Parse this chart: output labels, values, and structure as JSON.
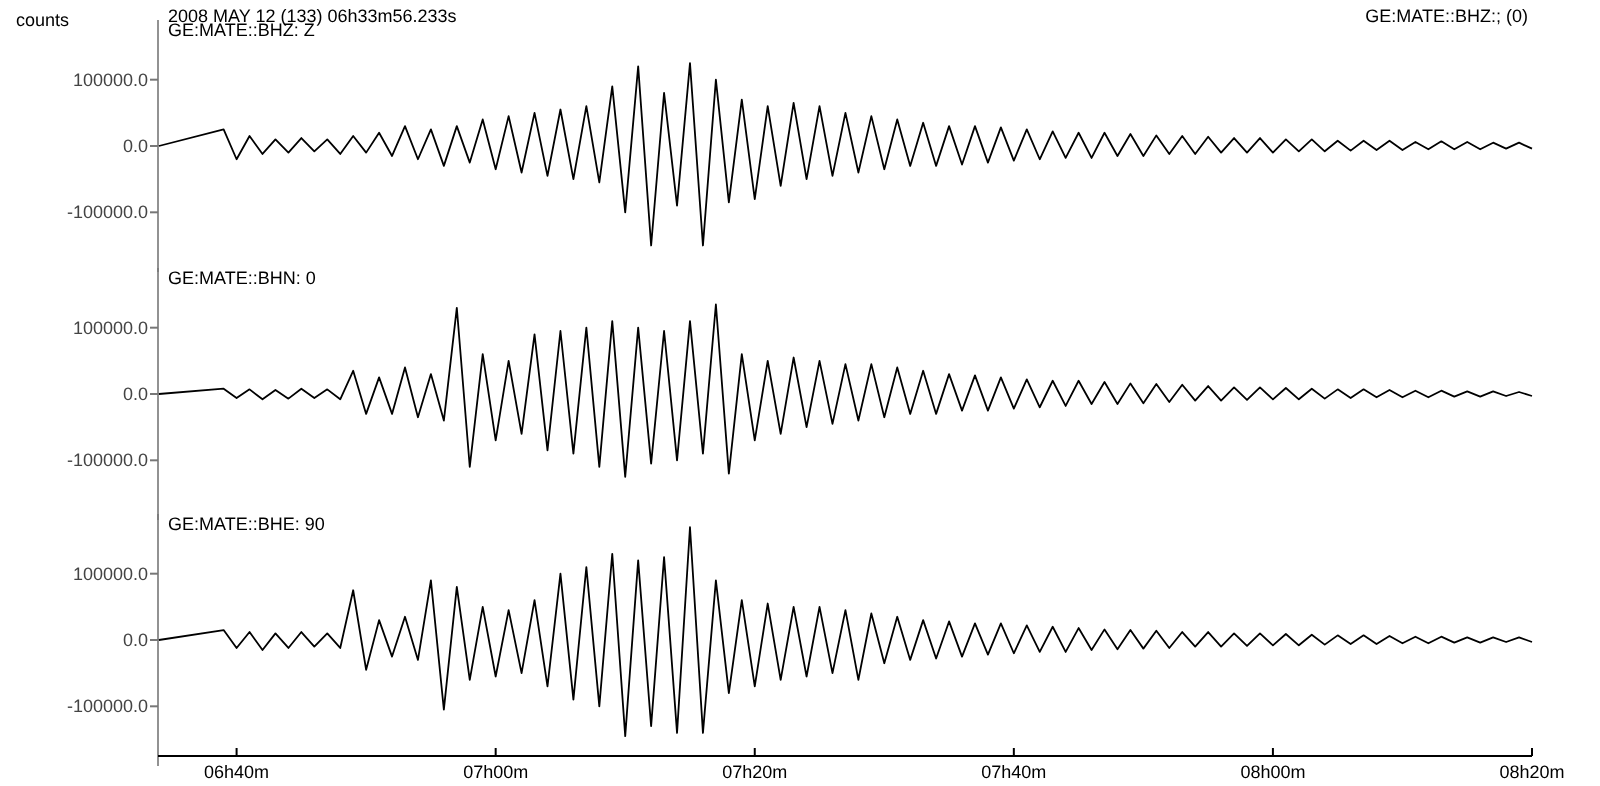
{
  "chart_data": [
    {
      "type": "line",
      "title": "GE:MATE::BHZ: Z",
      "ylabel": "counts",
      "annotations": [
        "2008 MAY 12 (133)  06h33m56.233s",
        "GE:MATE::BHZ:; (0)"
      ],
      "tick_labels": "y",
      "x": [
        "2008-05-12T06:34",
        "2008-05-12T06:39",
        "2008-05-12T06:40",
        "2008-05-12T06:41",
        "2008-05-12T06:42",
        "2008-05-12T06:43",
        "2008-05-12T06:44",
        "2008-05-12T06:45",
        "2008-05-12T06:46",
        "2008-05-12T06:47",
        "2008-05-12T06:48",
        "2008-05-12T06:49",
        "2008-05-12T06:50",
        "2008-05-12T06:51",
        "2008-05-12T06:52",
        "2008-05-12T06:53",
        "2008-05-12T06:54",
        "2008-05-12T06:55",
        "2008-05-12T06:56",
        "2008-05-12T06:57",
        "2008-05-12T06:58",
        "2008-05-12T06:59",
        "2008-05-12T07:00",
        "2008-05-12T07:01",
        "2008-05-12T07:02",
        "2008-05-12T07:03",
        "2008-05-12T07:04",
        "2008-05-12T07:05",
        "2008-05-12T07:06",
        "2008-05-12T07:07",
        "2008-05-12T07:08",
        "2008-05-12T07:09",
        "2008-05-12T07:10",
        "2008-05-12T07:11",
        "2008-05-12T07:12",
        "2008-05-12T07:13",
        "2008-05-12T07:14",
        "2008-05-12T07:15",
        "2008-05-12T07:16",
        "2008-05-12T07:17",
        "2008-05-12T07:18",
        "2008-05-12T07:19",
        "2008-05-12T07:20",
        "2008-05-12T07:21",
        "2008-05-12T07:22",
        "2008-05-12T07:23",
        "2008-05-12T07:24",
        "2008-05-12T07:25",
        "2008-05-12T07:26",
        "2008-05-12T07:27",
        "2008-05-12T07:28",
        "2008-05-12T07:29",
        "2008-05-12T07:30",
        "2008-05-12T07:31",
        "2008-05-12T07:32",
        "2008-05-12T07:33",
        "2008-05-12T07:34",
        "2008-05-12T07:35",
        "2008-05-12T07:36",
        "2008-05-12T07:37",
        "2008-05-12T07:38",
        "2008-05-12T07:39",
        "2008-05-12T07:40",
        "2008-05-12T07:41",
        "2008-05-12T07:42",
        "2008-05-12T07:43",
        "2008-05-12T07:44",
        "2008-05-12T07:45",
        "2008-05-12T07:46",
        "2008-05-12T07:47",
        "2008-05-12T07:48",
        "2008-05-12T07:49",
        "2008-05-12T07:50",
        "2008-05-12T07:51",
        "2008-05-12T07:52",
        "2008-05-12T07:53",
        "2008-05-12T07:54",
        "2008-05-12T07:55",
        "2008-05-12T07:56",
        "2008-05-12T07:57",
        "2008-05-12T07:58",
        "2008-05-12T07:59",
        "2008-05-12T08:00",
        "2008-05-12T08:01",
        "2008-05-12T08:02",
        "2008-05-12T08:03",
        "2008-05-12T08:04",
        "2008-05-12T08:05",
        "2008-05-12T08:06",
        "2008-05-12T08:07",
        "2008-05-12T08:08",
        "2008-05-12T08:09",
        "2008-05-12T08:10",
        "2008-05-12T08:11",
        "2008-05-12T08:12",
        "2008-05-12T08:13",
        "2008-05-12T08:14",
        "2008-05-12T08:15",
        "2008-05-12T08:16",
        "2008-05-12T08:17",
        "2008-05-12T08:18",
        "2008-05-12T08:19",
        "2008-05-12T08:20"
      ],
      "series": [
        {
          "color": "#000000",
          "values": [
            0,
            25000,
            -20000,
            15000,
            -12000,
            10000,
            -10000,
            12000,
            -8000,
            10000,
            -12000,
            15000,
            -10000,
            20000,
            -15000,
            30000,
            -20000,
            25000,
            -30000,
            30000,
            -25000,
            40000,
            -35000,
            45000,
            -40000,
            50000,
            -45000,
            55000,
            -50000,
            60000,
            -55000,
            90000,
            -100000,
            120000,
            -150000,
            80000,
            -90000,
            125000,
            -150000,
            100000,
            -85000,
            70000,
            -80000,
            60000,
            -60000,
            65000,
            -50000,
            60000,
            -45000,
            50000,
            -40000,
            45000,
            -35000,
            40000,
            -30000,
            35000,
            -30000,
            30000,
            -28000,
            30000,
            -25000,
            28000,
            -22000,
            25000,
            -20000,
            22000,
            -18000,
            20000,
            -18000,
            20000,
            -15000,
            18000,
            -15000,
            16000,
            -12000,
            15000,
            -12000,
            14000,
            -10000,
            12000,
            -10000,
            12000,
            -10000,
            10000,
            -8000,
            10000,
            -8000,
            8000,
            -7000,
            8000,
            -6000,
            8000,
            -6000,
            6000,
            -5000,
            7000,
            -5000,
            6000,
            -5000,
            5000,
            -4000,
            5000,
            -4000
          ]
        }
      ],
      "xlim": [
        "2008-05-12T06:33:56",
        "2008-05-12T08:20"
      ],
      "ylim": [
        -190000,
        190000
      ],
      "yticks": [
        {
          "value": -100000,
          "label": "-100000.0"
        },
        {
          "value": 0,
          "label": "0.0"
        },
        {
          "value": 100000,
          "label": "100000.0"
        }
      ]
    },
    {
      "type": "line",
      "title": "GE:MATE::BHN: 0",
      "tick_labels": "y",
      "x": [
        "2008-05-12T06:34",
        "2008-05-12T06:39",
        "2008-05-12T06:40",
        "2008-05-12T06:41",
        "2008-05-12T06:42",
        "2008-05-12T06:43",
        "2008-05-12T06:44",
        "2008-05-12T06:45",
        "2008-05-12T06:46",
        "2008-05-12T06:47",
        "2008-05-12T06:48",
        "2008-05-12T06:49",
        "2008-05-12T06:50",
        "2008-05-12T06:51",
        "2008-05-12T06:52",
        "2008-05-12T06:53",
        "2008-05-12T06:54",
        "2008-05-12T06:55",
        "2008-05-12T06:56",
        "2008-05-12T06:57",
        "2008-05-12T06:58",
        "2008-05-12T06:59",
        "2008-05-12T07:00",
        "2008-05-12T07:01",
        "2008-05-12T07:02",
        "2008-05-12T07:03",
        "2008-05-12T07:04",
        "2008-05-12T07:05",
        "2008-05-12T07:06",
        "2008-05-12T07:07",
        "2008-05-12T07:08",
        "2008-05-12T07:09",
        "2008-05-12T07:10",
        "2008-05-12T07:11",
        "2008-05-12T07:12",
        "2008-05-12T07:13",
        "2008-05-12T07:14",
        "2008-05-12T07:15",
        "2008-05-12T07:16",
        "2008-05-12T07:17",
        "2008-05-12T07:18",
        "2008-05-12T07:19",
        "2008-05-12T07:20",
        "2008-05-12T07:21",
        "2008-05-12T07:22",
        "2008-05-12T07:23",
        "2008-05-12T07:24",
        "2008-05-12T07:25",
        "2008-05-12T07:26",
        "2008-05-12T07:27",
        "2008-05-12T07:28",
        "2008-05-12T07:29",
        "2008-05-12T07:30",
        "2008-05-12T07:31",
        "2008-05-12T07:32",
        "2008-05-12T07:33",
        "2008-05-12T07:34",
        "2008-05-12T07:35",
        "2008-05-12T07:36",
        "2008-05-12T07:37",
        "2008-05-12T07:38",
        "2008-05-12T07:39",
        "2008-05-12T07:40",
        "2008-05-12T07:41",
        "2008-05-12T07:42",
        "2008-05-12T07:43",
        "2008-05-12T07:44",
        "2008-05-12T07:45",
        "2008-05-12T07:46",
        "2008-05-12T07:47",
        "2008-05-12T07:48",
        "2008-05-12T07:49",
        "2008-05-12T07:50",
        "2008-05-12T07:51",
        "2008-05-12T07:52",
        "2008-05-12T07:53",
        "2008-05-12T07:54",
        "2008-05-12T07:55",
        "2008-05-12T07:56",
        "2008-05-12T07:57",
        "2008-05-12T07:58",
        "2008-05-12T07:59",
        "2008-05-12T08:00",
        "2008-05-12T08:01",
        "2008-05-12T08:02",
        "2008-05-12T08:03",
        "2008-05-12T08:04",
        "2008-05-12T08:05",
        "2008-05-12T08:06",
        "2008-05-12T08:07",
        "2008-05-12T08:08",
        "2008-05-12T08:09",
        "2008-05-12T08:10",
        "2008-05-12T08:11",
        "2008-05-12T08:12",
        "2008-05-12T08:13",
        "2008-05-12T08:14",
        "2008-05-12T08:15",
        "2008-05-12T08:16",
        "2008-05-12T08:17",
        "2008-05-12T08:18",
        "2008-05-12T08:19",
        "2008-05-12T08:20"
      ],
      "series": [
        {
          "color": "#000000",
          "values": [
            0,
            8000,
            -6000,
            7000,
            -8000,
            6000,
            -7000,
            8000,
            -6000,
            7000,
            -8000,
            35000,
            -30000,
            25000,
            -30000,
            40000,
            -35000,
            30000,
            -40000,
            130000,
            -110000,
            60000,
            -70000,
            50000,
            -60000,
            90000,
            -85000,
            95000,
            -90000,
            100000,
            -110000,
            110000,
            -125000,
            100000,
            -105000,
            95000,
            -100000,
            110000,
            -90000,
            135000,
            -120000,
            60000,
            -70000,
            50000,
            -60000,
            55000,
            -50000,
            50000,
            -45000,
            45000,
            -40000,
            45000,
            -35000,
            40000,
            -30000,
            35000,
            -30000,
            30000,
            -25000,
            28000,
            -25000,
            25000,
            -22000,
            22000,
            -20000,
            20000,
            -18000,
            20000,
            -15000,
            18000,
            -15000,
            16000,
            -14000,
            15000,
            -12000,
            14000,
            -10000,
            12000,
            -10000,
            10000,
            -9000,
            10000,
            -8000,
            9000,
            -8000,
            8000,
            -7000,
            7000,
            -6000,
            7000,
            -5000,
            6000,
            -5000,
            5000,
            -5000,
            5000,
            -4000,
            4000,
            -4000,
            4000,
            -3000,
            3000,
            -3000
          ]
        }
      ],
      "xlim": [
        "2008-05-12T06:33:56",
        "2008-05-12T08:20"
      ],
      "ylim": [
        -190000,
        190000
      ],
      "yticks": [
        {
          "value": -100000,
          "label": "-100000.0"
        },
        {
          "value": 0,
          "label": "0.0"
        },
        {
          "value": 100000,
          "label": "100000.0"
        }
      ]
    },
    {
      "type": "line",
      "title": "GE:MATE::BHE: 90",
      "x": [
        "2008-05-12T06:34",
        "2008-05-12T06:39",
        "2008-05-12T06:40",
        "2008-05-12T06:41",
        "2008-05-12T06:42",
        "2008-05-12T06:43",
        "2008-05-12T06:44",
        "2008-05-12T06:45",
        "2008-05-12T06:46",
        "2008-05-12T06:47",
        "2008-05-12T06:48",
        "2008-05-12T06:49",
        "2008-05-12T06:50",
        "2008-05-12T06:51",
        "2008-05-12T06:52",
        "2008-05-12T06:53",
        "2008-05-12T06:54",
        "2008-05-12T06:55",
        "2008-05-12T06:56",
        "2008-05-12T06:57",
        "2008-05-12T06:58",
        "2008-05-12T06:59",
        "2008-05-12T07:00",
        "2008-05-12T07:01",
        "2008-05-12T07:02",
        "2008-05-12T07:03",
        "2008-05-12T07:04",
        "2008-05-12T07:05",
        "2008-05-12T07:06",
        "2008-05-12T07:07",
        "2008-05-12T07:08",
        "2008-05-12T07:09",
        "2008-05-12T07:10",
        "2008-05-12T07:11",
        "2008-05-12T07:12",
        "2008-05-12T07:13",
        "2008-05-12T07:14",
        "2008-05-12T07:15",
        "2008-05-12T07:16",
        "2008-05-12T07:17",
        "2008-05-12T07:18",
        "2008-05-12T07:19",
        "2008-05-12T07:20",
        "2008-05-12T07:21",
        "2008-05-12T07:22",
        "2008-05-12T07:23",
        "2008-05-12T07:24",
        "2008-05-12T07:25",
        "2008-05-12T07:26",
        "2008-05-12T07:27",
        "2008-05-12T07:28",
        "2008-05-12T07:29",
        "2008-05-12T07:30",
        "2008-05-12T07:31",
        "2008-05-12T07:32",
        "2008-05-12T07:33",
        "2008-05-12T07:34",
        "2008-05-12T07:35",
        "2008-05-12T07:36",
        "2008-05-12T07:37",
        "2008-05-12T07:38",
        "2008-05-12T07:39",
        "2008-05-12T07:40",
        "2008-05-12T07:41",
        "2008-05-12T07:42",
        "2008-05-12T07:43",
        "2008-05-12T07:44",
        "2008-05-12T07:45",
        "2008-05-12T07:46",
        "2008-05-12T07:47",
        "2008-05-12T07:48",
        "2008-05-12T07:49",
        "2008-05-12T07:50",
        "2008-05-12T07:51",
        "2008-05-12T07:52",
        "2008-05-12T07:53",
        "2008-05-12T07:54",
        "2008-05-12T07:55",
        "2008-05-12T07:56",
        "2008-05-12T07:57",
        "2008-05-12T07:58",
        "2008-05-12T07:59",
        "2008-05-12T08:00",
        "2008-05-12T08:01",
        "2008-05-12T08:02",
        "2008-05-12T08:03",
        "2008-05-12T08:04",
        "2008-05-12T08:05",
        "2008-05-12T08:06",
        "2008-05-12T08:07",
        "2008-05-12T08:08",
        "2008-05-12T08:09",
        "2008-05-12T08:10",
        "2008-05-12T08:11",
        "2008-05-12T08:12",
        "2008-05-12T08:13",
        "2008-05-12T08:14",
        "2008-05-12T08:15",
        "2008-05-12T08:16",
        "2008-05-12T08:17",
        "2008-05-12T08:18",
        "2008-05-12T08:19",
        "2008-05-12T08:20"
      ],
      "series": [
        {
          "color": "#000000",
          "values": [
            0,
            15000,
            -12000,
            12000,
            -15000,
            10000,
            -12000,
            12000,
            -10000,
            10000,
            -12000,
            75000,
            -45000,
            30000,
            -25000,
            35000,
            -30000,
            90000,
            -105000,
            80000,
            -60000,
            50000,
            -55000,
            45000,
            -50000,
            60000,
            -70000,
            100000,
            -90000,
            110000,
            -100000,
            130000,
            -145000,
            120000,
            -130000,
            125000,
            -140000,
            170000,
            -140000,
            90000,
            -80000,
            60000,
            -70000,
            55000,
            -60000,
            50000,
            -55000,
            50000,
            -50000,
            45000,
            -60000,
            40000,
            -35000,
            35000,
            -30000,
            30000,
            -28000,
            28000,
            -25000,
            25000,
            -22000,
            25000,
            -20000,
            22000,
            -18000,
            20000,
            -18000,
            18000,
            -15000,
            16000,
            -14000,
            15000,
            -13000,
            14000,
            -12000,
            12000,
            -10000,
            12000,
            -10000,
            10000,
            -9000,
            10000,
            -8000,
            9000,
            -8000,
            8000,
            -7000,
            7000,
            -6000,
            7000,
            -6000,
            6000,
            -5000,
            5000,
            -5000,
            5000,
            -4000,
            4000,
            -4000,
            4000,
            -3000,
            4000,
            -3000
          ]
        }
      ],
      "xlim": [
        "2008-05-12T06:33:56",
        "2008-05-12T08:20"
      ],
      "ylim": [
        -190000,
        190000
      ],
      "yticks": [
        {
          "value": -100000,
          "label": "-100000.0"
        },
        {
          "value": 0,
          "label": "0.0"
        },
        {
          "value": 100000,
          "label": "100000.0"
        }
      ],
      "xticks": [
        {
          "value": "2008-05-12T06:40",
          "label": "06h40m"
        },
        {
          "value": "2008-05-12T07:00",
          "label": "07h00m"
        },
        {
          "value": "2008-05-12T07:20",
          "label": "07h20m"
        },
        {
          "value": "2008-05-12T07:40",
          "label": "07h40m"
        },
        {
          "value": "2008-05-12T08:00",
          "label": "08h00m"
        },
        {
          "value": "2008-05-12T08:20",
          "label": "08h20m"
        }
      ]
    }
  ]
}
